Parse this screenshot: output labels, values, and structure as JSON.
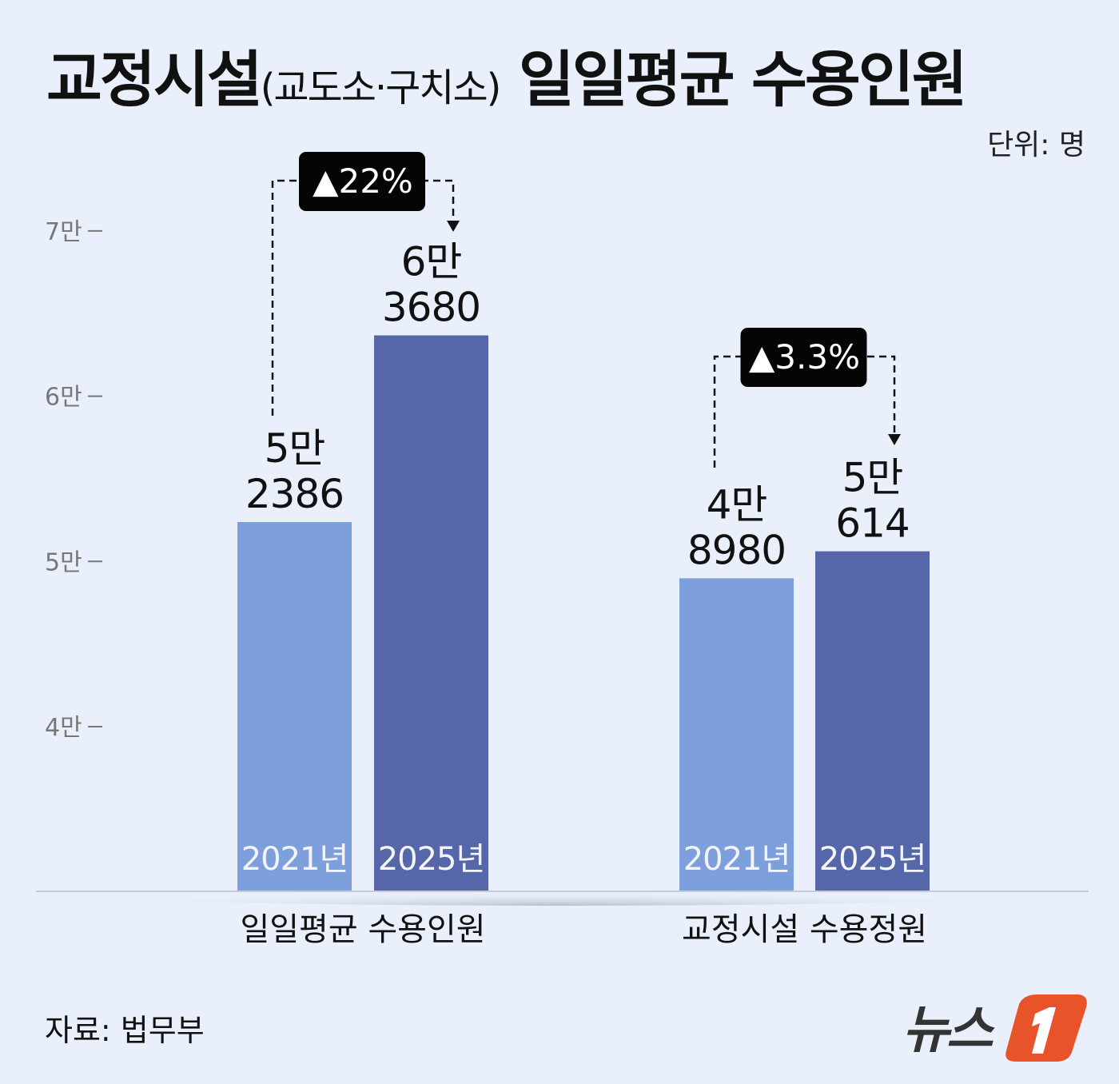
{
  "title": {
    "main_a": "교정시설",
    "sub": "(교도소·구치소)",
    "main_b": "일일평균 수용인원"
  },
  "unit_label": "단위: 명",
  "source": "자료: 법무부",
  "logo": {
    "text": "뉴스1",
    "accent": "#e8532a"
  },
  "chart_data": {
    "type": "bar",
    "title": "교정시설(교도소·구치소) 일일평균 수용인원",
    "ylabel": "",
    "ylim": [
      30000,
      72000
    ],
    "yticks": [
      40000,
      50000,
      60000,
      70000
    ],
    "ytick_labels": [
      "4만",
      "5만",
      "6만",
      "7만"
    ],
    "grid": false,
    "categories": [
      "일일평균 수용인원",
      "교정시설 수용정원"
    ],
    "series": [
      {
        "name": "2021년",
        "color": "#7d9fdc",
        "values": [
          52386,
          48980
        ],
        "value_labels": [
          [
            "5만",
            "2386"
          ],
          [
            "4만",
            "8980"
          ]
        ]
      },
      {
        "name": "2025년",
        "color": "#5567a9",
        "values": [
          63680,
          50614
        ],
        "value_labels": [
          [
            "6만",
            "3680"
          ],
          [
            "5만",
            "614"
          ]
        ]
      }
    ],
    "annotations": [
      "▲22%",
      "▲3.3%"
    ]
  }
}
